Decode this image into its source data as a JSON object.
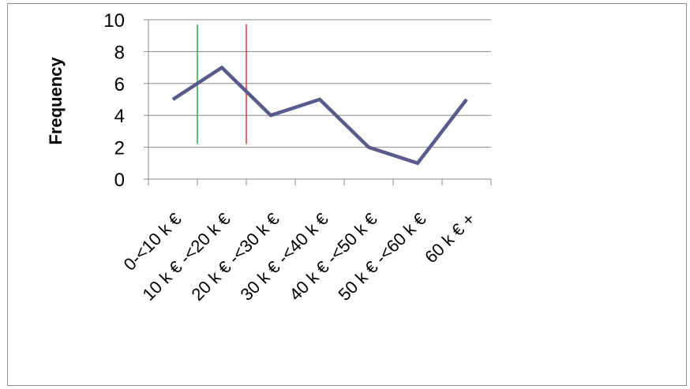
{
  "chart_data": {
    "type": "line",
    "title": "",
    "xlabel": "",
    "ylabel": "Frequency",
    "categories": [
      "0-<10 k €",
      "10 k € -<20 k €",
      "20 k € -<30 k €",
      "30 k € -<40 k €",
      "40 k € -<50 k €",
      "50 k € -<60 k €",
      "60 k € +"
    ],
    "series": [
      {
        "values": [
          5,
          7,
          4,
          5,
          2,
          1,
          5
        ],
        "color": "#5a5a8c"
      }
    ],
    "ylim": [
      0,
      10
    ],
    "yticks": [
      0,
      2,
      4,
      6,
      8,
      10
    ],
    "grid": true,
    "legend": "none",
    "reference_lines": [
      {
        "x_between": [
          0,
          1
        ],
        "color": "#2eaa4a"
      },
      {
        "x_between": [
          1,
          2
        ],
        "color": "#e53030"
      }
    ]
  }
}
